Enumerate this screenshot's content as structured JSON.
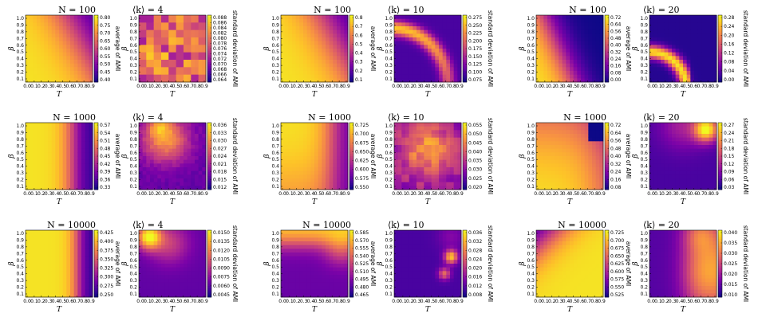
{
  "chart_data": {
    "type": "heatmap",
    "grid": {
      "rows": 3,
      "groups": 3,
      "panels_per_group": 2
    },
    "xlabel": "T",
    "ylabel": "β",
    "x_ticks": [
      "0.0",
      "0.1",
      "0.2",
      "0.3",
      "0.4",
      "0.5",
      "0.6",
      "0.7",
      "0.8",
      "0.9"
    ],
    "y_ticks": [
      "1.0",
      "0.9",
      "0.8",
      "0.7",
      "0.6",
      "0.5",
      "0.4",
      "0.3",
      "0.2",
      "0.1"
    ],
    "colormap": "plasma",
    "avg_label": "average of AMI",
    "std_label": "standard deviation of AMI",
    "rows": [
      {
        "N": 100,
        "title_N": "N = 100",
        "groups": [
          {
            "k": 4,
            "title_k": "⟨k⟩ = 4",
            "avg": {
              "ticks": [
                "0.80",
                "0.75",
                "0.70",
                "0.65",
                "0.60",
                "0.55",
                "0.50",
                "0.45",
                "0.40"
              ],
              "pattern": "diag"
            },
            "std": {
              "ticks": [
                "0.088",
                "0.086",
                "0.084",
                "0.082",
                "0.080",
                "0.078",
                "0.076",
                "0.074",
                "0.072",
                "0.070",
                "0.068",
                "0.066",
                "0.064"
              ],
              "pattern": "patchy"
            }
          },
          {
            "k": 10,
            "title_k": "⟨k⟩ = 10",
            "avg": {
              "ticks": [
                "0.8",
                "0.7",
                "0.6",
                "0.5",
                "0.4",
                "0.3",
                "0.2",
                "0.1"
              ],
              "pattern": "diag"
            },
            "std": {
              "ticks": [
                "0.275",
                "0.250",
                "0.225",
                "0.200",
                "0.175",
                "0.150",
                "0.125",
                "0.100",
                "0.075"
              ],
              "pattern": "arc"
            }
          },
          {
            "k": 20,
            "title_k": "⟨k⟩ = 20",
            "avg": {
              "ticks": [
                "0.72",
                "0.64",
                "0.56",
                "0.48",
                "0.40",
                "0.32",
                "0.24",
                "0.16",
                "0.08",
                "0.00"
              ],
              "pattern": "corner"
            },
            "std": {
              "ticks": [
                "0.28",
                "0.24",
                "0.20",
                "0.16",
                "0.12",
                "0.08",
                "0.04",
                "0.00"
              ],
              "pattern": "arcsmall"
            }
          }
        ]
      },
      {
        "N": 1000,
        "title_N": "N = 1000",
        "groups": [
          {
            "k": 4,
            "title_k": "⟨k⟩ = 4",
            "avg": {
              "ticks": [
                "0.57",
                "0.54",
                "0.51",
                "0.48",
                "0.45",
                "0.42",
                "0.39",
                "0.36",
                "0.33"
              ],
              "pattern": "band"
            },
            "std": {
              "ticks": [
                "0.036",
                "0.033",
                "0.030",
                "0.027",
                "0.024",
                "0.021",
                "0.018",
                "0.015",
                "0.012"
              ],
              "pattern": "softblob"
            }
          },
          {
            "k": 10,
            "title_k": "⟨k⟩ = 10",
            "avg": {
              "ticks": [
                "0.725",
                "0.700",
                "0.675",
                "0.650",
                "0.625",
                "0.600",
                "0.575",
                "0.550"
              ],
              "pattern": "band2"
            },
            "std": {
              "ticks": [
                "0.055",
                "0.050",
                "0.045",
                "0.040",
                "0.035",
                "0.030",
                "0.025",
                "0.020"
              ],
              "pattern": "mottled"
            }
          },
          {
            "k": 20,
            "title_k": "⟨k⟩ = 20",
            "avg": {
              "ticks": [
                "0.72",
                "0.64",
                "0.56",
                "0.48",
                "0.40",
                "0.32",
                "0.24",
                "0.16",
                "0.08"
              ],
              "pattern": "topright"
            },
            "std": {
              "ticks": [
                "0.27",
                "0.24",
                "0.21",
                "0.18",
                "0.15",
                "0.12",
                "0.09",
                "0.06",
                "0.03"
              ],
              "pattern": "topspot"
            }
          }
        ]
      },
      {
        "N": 10000,
        "title_N": "N = 10000",
        "groups": [
          {
            "k": 4,
            "title_k": "⟨k⟩ = 4",
            "avg": {
              "ticks": [
                "0.425",
                "0.400",
                "0.375",
                "0.350",
                "0.325",
                "0.300",
                "0.275",
                "0.250"
              ],
              "pattern": "band3"
            },
            "std": {
              "ticks": [
                "0.0150",
                "0.0135",
                "0.0120",
                "0.0105",
                "0.0090",
                "0.0075",
                "0.0060",
                "0.0045"
              ],
              "pattern": "topleftspot"
            }
          },
          {
            "k": 10,
            "title_k": "⟨k⟩ = 10",
            "avg": {
              "ticks": [
                "0.585",
                "0.570",
                "0.555",
                "0.540",
                "0.525",
                "0.510",
                "0.495",
                "0.480",
                "0.465"
              ],
              "pattern": "topband"
            },
            "std": {
              "ticks": [
                "0.036",
                "0.032",
                "0.028",
                "0.024",
                "0.020",
                "0.016",
                "0.012",
                "0.008"
              ],
              "pattern": "rightspots"
            }
          },
          {
            "k": 20,
            "title_k": "⟨k⟩ = 20",
            "avg": {
              "ticks": [
                "0.725",
                "0.700",
                "0.675",
                "0.650",
                "0.625",
                "0.600",
                "0.575",
                "0.550",
                "0.525"
              ],
              "pattern": "invcorner"
            },
            "std": {
              "ticks": [
                "0.040",
                "0.035",
                "0.030",
                "0.025",
                "0.020",
                "0.015",
                "0.010"
              ],
              "pattern": "rightglow"
            }
          }
        ]
      }
    ]
  }
}
